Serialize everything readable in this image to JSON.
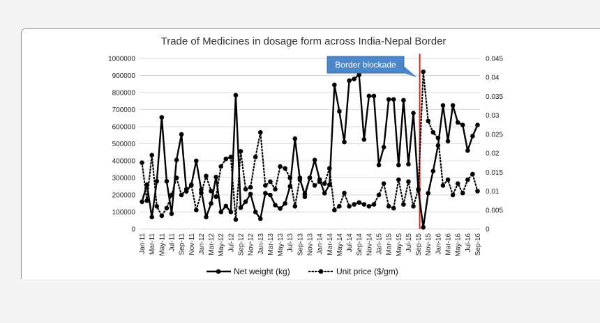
{
  "chart_data": {
    "type": "line",
    "title": "Trade of Medicines in dosage form across India-Nepal Border",
    "categories": [
      "Jan-11",
      "Feb-11",
      "Mar-11",
      "Apr-11",
      "May-11",
      "Jun-11",
      "Jul-11",
      "Aug-11",
      "Sep-11",
      "Oct-11",
      "Nov-11",
      "Dec-11",
      "Jan-12",
      "Feb-12",
      "Mar-12",
      "Apr-12",
      "May-12",
      "Jun-12",
      "Jul-12",
      "Aug-12",
      "Sep-12",
      "Oct-12",
      "Nov-12",
      "Dec-12",
      "Jan-13",
      "Feb-13",
      "Mar-13",
      "Apr-13",
      "May-13",
      "Jun-13",
      "Jul-13",
      "Aug-13",
      "Sep-13",
      "Oct-13",
      "Nov-13",
      "Dec-13",
      "Jan-14",
      "Feb-14",
      "Mar-14",
      "Apr-14",
      "May-14",
      "Jun-14",
      "Jul-14",
      "Aug-14",
      "Sep-14",
      "Oct-14",
      "Nov-14",
      "Dec-14",
      "Jan-15",
      "Feb-15",
      "Mar-15",
      "Apr-15",
      "May-15",
      "Jun-15",
      "Jul-15",
      "Aug-15",
      "Sep-15",
      "Oct-15",
      "Nov-15",
      "Dec-15",
      "Jan-16",
      "Feb-16",
      "Mar-16",
      "Apr-16",
      "May-16",
      "Jun-16",
      "Jul-16",
      "Aug-16",
      "Sep-16"
    ],
    "tick_labels": [
      "Jan-11",
      "Mar-11",
      "May-11",
      "Jul-11",
      "Sep-11",
      "Nov-11",
      "Jan-12",
      "Mar-12",
      "May-12",
      "Jul-12",
      "Sep-12",
      "Nov-12",
      "Jan-13",
      "Mar-13",
      "May-13",
      "Jul-13",
      "Sep-13",
      "Nov-13",
      "Jan-14",
      "Mar-14",
      "May-14",
      "Jul-14",
      "Sep-14",
      "Nov-14",
      "Jan-15",
      "Mar-15",
      "May-15",
      "Jul-15",
      "Sep-15",
      "Nov-15",
      "Jan-16",
      "Mar-16",
      "May-16",
      "Jul-16",
      "Sep-16"
    ],
    "y_ticks": [
      "0",
      "100000",
      "200000",
      "300000",
      "400000",
      "500000",
      "600000",
      "700000",
      "800000",
      "900000",
      "1000000"
    ],
    "y2_ticks": [
      "0",
      "0.005",
      "0.01",
      "0.015",
      "0.02",
      "0.025",
      "0.03",
      "0.035",
      "0.04",
      "0.045"
    ],
    "ylim": [
      0,
      1000000
    ],
    "y2lim": [
      0,
      0.045
    ],
    "series": [
      {
        "name": "Net weight (kg)",
        "axis": "left",
        "style": "solid",
        "values": [
          160000,
          260000,
          70000,
          280000,
          655000,
          280000,
          90000,
          405000,
          555000,
          220000,
          260000,
          400000,
          230000,
          70000,
          150000,
          305000,
          100000,
          135000,
          100000,
          785000,
          125000,
          160000,
          205000,
          100000,
          60000,
          210000,
          200000,
          140000,
          120000,
          150000,
          250000,
          530000,
          290000,
          205000,
          300000,
          405000,
          290000,
          210000,
          260000,
          845000,
          690000,
          510000,
          870000,
          880000,
          905000,
          525000,
          780000,
          780000,
          375000,
          480000,
          760000,
          760000,
          375000,
          755000,
          380000,
          680000,
          230000,
          10000,
          210000,
          340000,
          490000,
          725000,
          515000,
          725000,
          625000,
          610000,
          460000,
          545000,
          610000
        ]
      },
      {
        "name": "Unit price ($/gm)",
        "axis": "right",
        "style": "dotted",
        "values": [
          0.0175,
          0.0075,
          0.0195,
          0.006,
          0.0035,
          0.0055,
          0.009,
          0.0135,
          0.009,
          0.0105,
          0.0115,
          0.005,
          0.0095,
          0.014,
          0.01,
          0.0085,
          0.0165,
          0.0185,
          0.019,
          0.0025,
          0.0205,
          0.0105,
          0.011,
          0.019,
          0.0255,
          0.0115,
          0.0125,
          0.0105,
          0.0165,
          0.016,
          0.0135,
          0.006,
          0.0135,
          0.0085,
          0.0135,
          0.0115,
          0.0125,
          0.012,
          0.016,
          0.005,
          0.006,
          0.0095,
          0.006,
          0.0065,
          0.007,
          0.0065,
          0.006,
          0.0065,
          0.009,
          0.012,
          0.006,
          0.0055,
          0.013,
          0.0065,
          0.0125,
          0.006,
          0.0105,
          0.0415,
          0.0285,
          0.0255,
          0.024,
          0.0115,
          0.013,
          0.009,
          0.012,
          0.0095,
          0.013,
          0.0145,
          0.01
        ]
      }
    ],
    "annotation": {
      "text": "Border blockade",
      "at_category": "Sep-15",
      "line_color": "#e02020",
      "box_color": "#4a86c8"
    },
    "legend_placement": "bottom",
    "grid": true,
    "line_color": "#000000"
  }
}
